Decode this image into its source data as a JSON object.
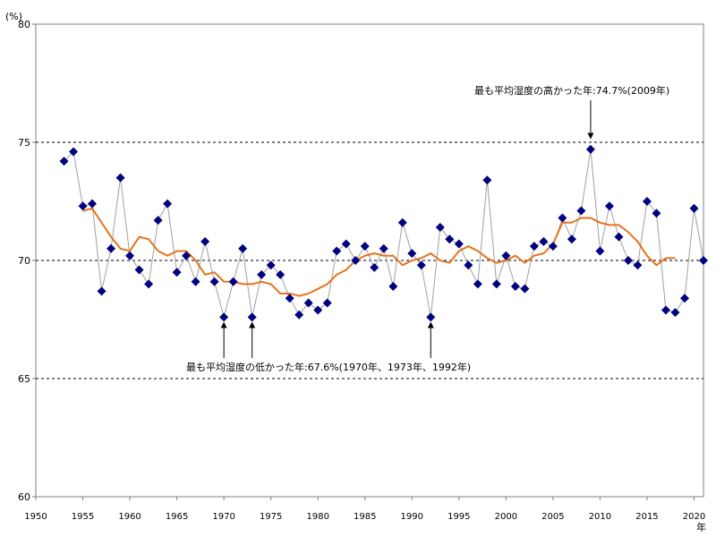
{
  "chart_data": {
    "type": "line",
    "y_unit": "(%)",
    "x_unit": "年",
    "xlim": [
      1950,
      2021
    ],
    "ylim": [
      60,
      80
    ],
    "x_ticks": [
      1950,
      1955,
      1960,
      1965,
      1970,
      1975,
      1980,
      1985,
      1990,
      1995,
      2000,
      2005,
      2010,
      2015,
      2020
    ],
    "y_ticks": [
      60,
      65,
      70,
      75,
      80
    ],
    "gridlines_y": [
      65,
      70,
      75
    ],
    "series": [
      {
        "style": "markers-with-thin-gray-line",
        "color": "#000080",
        "line_color": "#a0a0a0",
        "x": [
          1953,
          1954,
          1955,
          1956,
          1957,
          1958,
          1959,
          1960,
          1961,
          1962,
          1963,
          1964,
          1965,
          1966,
          1967,
          1968,
          1969,
          1970,
          1971,
          1972,
          1973,
          1974,
          1975,
          1976,
          1977,
          1978,
          1979,
          1980,
          1981,
          1982,
          1983,
          1984,
          1985,
          1986,
          1987,
          1988,
          1989,
          1990,
          1991,
          1992,
          1993,
          1994,
          1995,
          1996,
          1997,
          1998,
          1999,
          2000,
          2001,
          2002,
          2003,
          2004,
          2005,
          2006,
          2007,
          2008,
          2009,
          2010,
          2011,
          2012,
          2013,
          2014,
          2015,
          2016,
          2017,
          2018,
          2019,
          2020,
          2021
        ],
        "values": [
          74.2,
          74.6,
          72.3,
          72.4,
          68.7,
          70.5,
          73.5,
          70.2,
          69.6,
          69.0,
          71.7,
          72.4,
          69.5,
          70.2,
          69.1,
          70.8,
          69.1,
          67.6,
          69.1,
          70.5,
          67.6,
          69.4,
          69.8,
          69.4,
          68.4,
          67.7,
          68.2,
          67.9,
          68.2,
          70.4,
          70.7,
          70.0,
          70.6,
          69.7,
          70.5,
          68.9,
          71.6,
          70.3,
          69.8,
          67.6,
          71.4,
          70.9,
          70.7,
          69.8,
          69.0,
          73.4,
          69.0,
          70.2,
          68.9,
          68.8,
          70.6,
          70.8,
          70.6,
          71.8,
          70.9,
          72.1,
          74.7,
          70.4,
          72.3,
          71.0,
          70.0,
          69.8,
          72.5,
          72.0,
          67.9,
          67.8,
          68.4,
          72.2,
          70.0
        ]
      },
      {
        "style": "moving-average-line",
        "color": "#e8731f",
        "x": [
          1955,
          1956,
          1957,
          1958,
          1959,
          1960,
          1961,
          1962,
          1963,
          1964,
          1965,
          1966,
          1967,
          1968,
          1969,
          1970,
          1971,
          1972,
          1973,
          1974,
          1975,
          1976,
          1977,
          1978,
          1979,
          1980,
          1981,
          1982,
          1983,
          1984,
          1985,
          1986,
          1987,
          1988,
          1989,
          1990,
          1991,
          1992,
          1993,
          1994,
          1995,
          1996,
          1997,
          1998,
          1999,
          2000,
          2001,
          2002,
          2003,
          2004,
          2005,
          2006,
          2007,
          2008,
          2009,
          2010,
          2011,
          2012,
          2013,
          2014,
          2015,
          2016,
          2017,
          2018
        ],
        "values": [
          72.1,
          72.2,
          71.6,
          71.0,
          70.5,
          70.4,
          71.0,
          70.9,
          70.4,
          70.2,
          70.4,
          70.4,
          70.0,
          69.4,
          69.5,
          69.1,
          69.1,
          69.0,
          69.0,
          69.1,
          69.0,
          68.6,
          68.6,
          68.5,
          68.6,
          68.8,
          69.0,
          69.4,
          69.6,
          70.0,
          70.2,
          70.3,
          70.2,
          70.2,
          69.8,
          70.0,
          70.1,
          70.3,
          70.0,
          69.9,
          70.4,
          70.6,
          70.4,
          70.1,
          69.9,
          70.0,
          70.2,
          69.9,
          70.2,
          70.3,
          70.7,
          71.6,
          71.6,
          71.8,
          71.8,
          71.6,
          71.5,
          71.5,
          71.2,
          70.8,
          70.2,
          69.8,
          70.1,
          70.1
        ]
      }
    ],
    "annotations": [
      {
        "text": "最も平均湿度の高かった年:74.7%(2009年)",
        "arrows": [
          {
            "x": 2009,
            "y": 74.7,
            "dir": "down"
          }
        ]
      },
      {
        "text": "最も平均湿度の低かった年:67.6%(1970年、1973年、1992年)",
        "arrows": [
          {
            "x": 1970,
            "y": 67.6,
            "dir": "up"
          },
          {
            "x": 1973,
            "y": 67.6,
            "dir": "up"
          },
          {
            "x": 1992,
            "y": 67.6,
            "dir": "up"
          }
        ]
      }
    ]
  }
}
